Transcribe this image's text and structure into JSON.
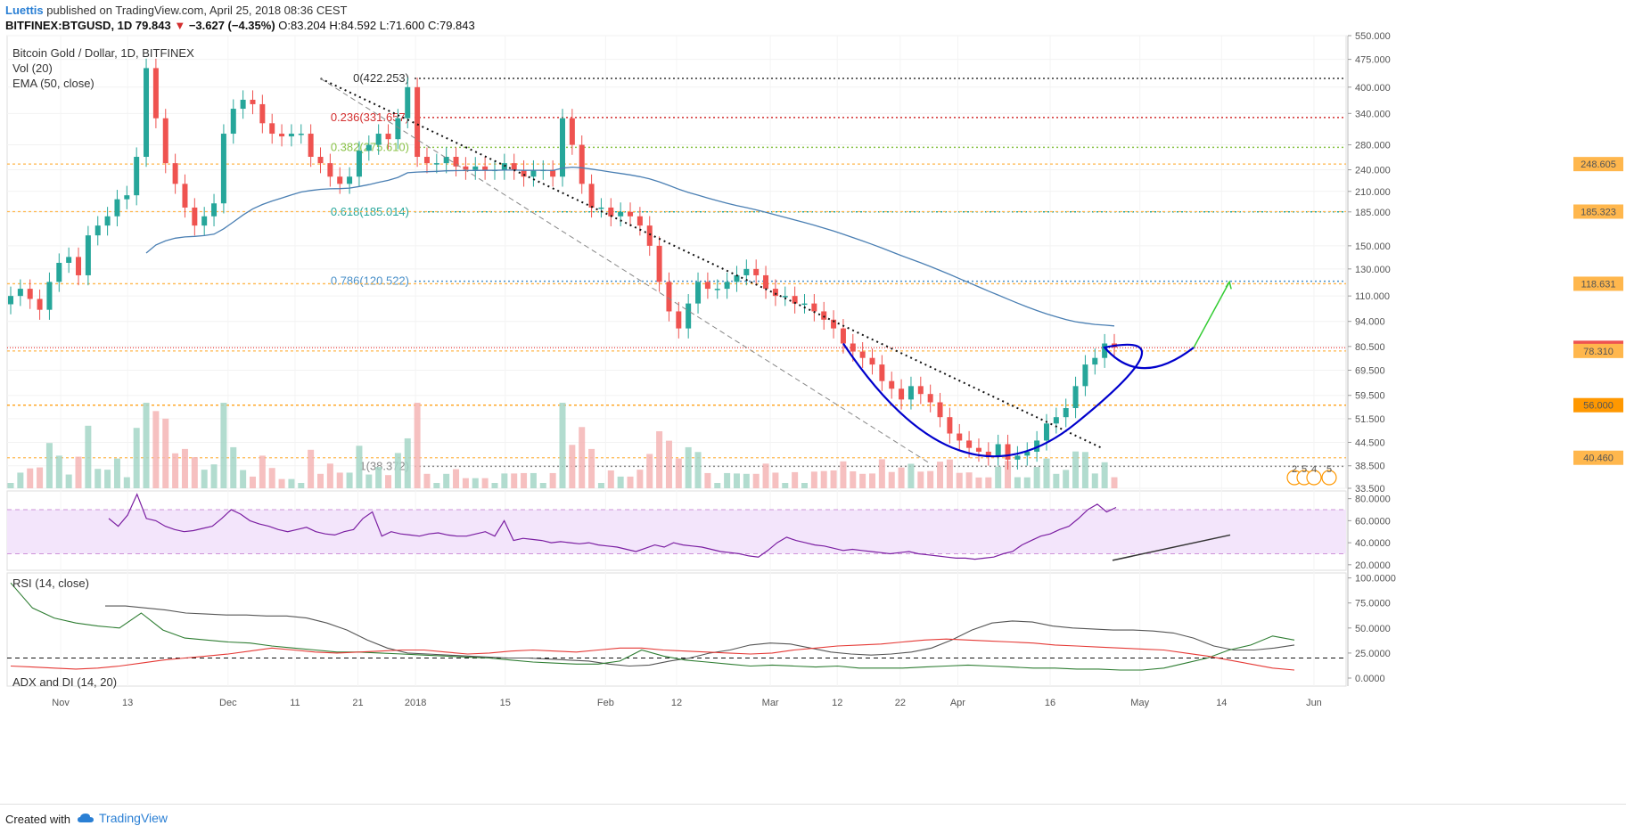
{
  "header": {
    "author": "Luettis",
    "published": "published on TradingView.com, April 25, 2018 08:36 CEST",
    "symbol": "BITFINEX:BTGUSD, 1D",
    "last": "79.843",
    "change_arrow": "▼",
    "change": "−3.627 (−4.35%)",
    "ohlc": "O:83.204 H:84.592 L:71.600 C:79.843"
  },
  "main_pane": {
    "title": "Bitcoin Gold / Dollar, 1D, BITFINEX",
    "indicator1": "Vol (20)",
    "indicator2": "EMA (50, close)"
  },
  "rsi_pane": {
    "title": "RSI (14, close)"
  },
  "adx_pane": {
    "title": "ADX and DI (14, 20)"
  },
  "footer": {
    "created": "Created with",
    "brand": "TradingView"
  },
  "colors": {
    "up": "#26a69a",
    "down": "#ef5350",
    "ema": "#4a7fb3",
    "rsi": "#7b1fa2",
    "adx": "#555555",
    "di_plus": "#2e7d32",
    "di_minus": "#e53935",
    "fib_orange": "#ff9800",
    "curve": "#0000cc",
    "projection": "#33cc33"
  },
  "chart_data": [
    {
      "type": "candlestick",
      "title": "Bitcoin Gold / Dollar, 1D, BITFINEX",
      "y_scale": "log",
      "y_ticks": [
        "550.000",
        "475.000",
        "400.000",
        "340.000",
        "280.000",
        "240.000",
        "210.000",
        "185.000",
        "150.000",
        "130.000",
        "110.000",
        "94.000",
        "80.500",
        "69.500",
        "59.500",
        "51.500",
        "44.500",
        "38.500",
        "33.500"
      ],
      "x_ticks": [
        "Nov",
        "13",
        "Dec",
        "11",
        "21",
        "2018",
        "15",
        "Feb",
        "12",
        "Mar",
        "12",
        "22",
        "Apr",
        "16",
        "May",
        "14",
        "Jun"
      ],
      "fibonacci": [
        {
          "label": "0(422.253)",
          "value": 422.253,
          "color": "#333333"
        },
        {
          "label": "0.236(331.657)",
          "value": 331.657,
          "color": "#d32f2f"
        },
        {
          "label": "0.382(275.610)",
          "value": 275.61,
          "color": "#8bc34a"
        },
        {
          "label": "0.618(185.014)",
          "value": 185.014,
          "color": "#26a69a"
        },
        {
          "label": "0.786(120.522)",
          "value": 120.522,
          "color": "#4a90c8"
        },
        {
          "label": "1(38.372)",
          "value": 38.372,
          "color": "#888888"
        }
      ],
      "price_badges": [
        {
          "label": "248.605",
          "value": 248.605,
          "color": "#ffb74d"
        },
        {
          "label": "185.323",
          "value": 185.323,
          "color": "#ffb74d"
        },
        {
          "label": "118.631",
          "value": 118.631,
          "color": "#ffb74d"
        },
        {
          "label": "79.843",
          "value": 79.843,
          "color": "#ef5350"
        },
        {
          "label": "78.310",
          "value": 78.31,
          "color": "#ffb74d"
        },
        {
          "label": "56.000",
          "value": 56.0,
          "color": "#ff9800"
        },
        {
          "label": "40.460",
          "value": 40.46,
          "color": "#ffb74d"
        }
      ],
      "close_series": [
        110,
        115,
        108,
        101,
        120,
        135,
        140,
        125,
        160,
        170,
        180,
        200,
        205,
        260,
        450,
        330,
        250,
        220,
        190,
        170,
        180,
        195,
        300,
        350,
        370,
        360,
        320,
        300,
        295,
        300,
        300,
        260,
        250,
        230,
        220,
        230,
        270,
        280,
        300,
        290,
        330,
        400,
        260,
        250,
        250,
        260,
        245,
        240,
        245,
        240,
        240,
        250,
        240,
        230,
        240,
        240,
        230,
        330,
        280,
        220,
        190,
        190,
        180,
        185,
        180,
        170,
        150,
        120,
        100,
        90,
        105,
        120,
        115,
        115,
        120,
        125,
        130,
        125,
        115,
        110,
        110,
        105,
        105,
        100,
        95,
        90,
        82,
        78,
        75,
        72,
        65,
        62,
        58,
        63,
        60,
        57,
        52,
        47,
        45,
        43,
        42,
        41,
        44,
        40,
        41,
        42,
        45,
        50,
        52,
        55,
        63,
        72,
        75,
        82,
        80
      ],
      "annotations": [
        "2",
        "5",
        "4",
        "5"
      ]
    },
    {
      "type": "line",
      "title": "RSI (14, close)",
      "y_ticks": [
        "80.0000",
        "60.0000",
        "40.0000",
        "20.0000"
      ],
      "ylim": [
        15,
        87
      ],
      "bands": [
        30,
        70
      ],
      "values": [
        62,
        55,
        65,
        84,
        62,
        60,
        55,
        52,
        50,
        51,
        53,
        55,
        62,
        70,
        66,
        60,
        57,
        55,
        52,
        50,
        52,
        54,
        50,
        48,
        47,
        50,
        52,
        62,
        68,
        46,
        50,
        48,
        47,
        46,
        48,
        49,
        47,
        46,
        46,
        48,
        50,
        46,
        60,
        42,
        44,
        43,
        42,
        40,
        41,
        40,
        39,
        40,
        38,
        37,
        36,
        34,
        32,
        35,
        38,
        36,
        40,
        38,
        37,
        36,
        34,
        32,
        31,
        30,
        28,
        27,
        33,
        40,
        45,
        42,
        40,
        38,
        37,
        35,
        33,
        34,
        33,
        32,
        31,
        30,
        31,
        32,
        30,
        29,
        28,
        27,
        26,
        26,
        25,
        26,
        27,
        30,
        32,
        38,
        42,
        46,
        48,
        52,
        55,
        62,
        70,
        75,
        68,
        72
      ]
    },
    {
      "type": "line",
      "title": "ADX and DI (14, 20)",
      "y_ticks": [
        "100.0000",
        "75.0000",
        "50.0000",
        "25.0000",
        "0.0000"
      ],
      "ylim": [
        -8,
        105
      ],
      "threshold": 20,
      "series": [
        {
          "values": [
            72,
            72,
            70,
            68,
            65,
            64,
            63,
            63,
            62,
            62,
            60,
            55,
            48,
            38,
            30,
            25,
            24,
            23,
            22,
            21,
            20,
            20,
            19,
            18,
            17,
            14,
            12,
            13,
            17,
            20,
            25,
            28,
            33,
            35,
            34,
            30,
            26,
            24,
            23,
            24,
            26,
            30,
            38,
            48,
            55,
            57,
            56,
            52,
            50,
            49,
            48,
            48,
            47,
            45,
            40,
            32,
            28,
            28,
            30,
            33
          ]
        },
        {
          "values": [
            95,
            70,
            60,
            55,
            52,
            50,
            65,
            48,
            40,
            38,
            36,
            35,
            32,
            30,
            28,
            26,
            26,
            25,
            24,
            23,
            22,
            21,
            20,
            18,
            16,
            15,
            14,
            14,
            17,
            28,
            22,
            18,
            16,
            14,
            12,
            13,
            12,
            11,
            12,
            10,
            10,
            10,
            11,
            12,
            13,
            12,
            11,
            10,
            10,
            9,
            9,
            8,
            8,
            10,
            15,
            20,
            28,
            33,
            42,
            38
          ]
        },
        {
          "values": [
            12,
            11,
            10,
            9,
            10,
            12,
            15,
            18,
            20,
            22,
            24,
            27,
            30,
            28,
            26,
            25,
            26,
            27,
            28,
            28,
            26,
            24,
            25,
            27,
            28,
            27,
            26,
            28,
            30,
            30,
            28,
            27,
            26,
            25,
            24,
            25,
            28,
            30,
            32,
            33,
            34,
            36,
            38,
            39,
            38,
            37,
            36,
            35,
            33,
            32,
            31,
            30,
            29,
            28,
            25,
            22,
            18,
            14,
            10,
            8
          ]
        }
      ]
    }
  ]
}
